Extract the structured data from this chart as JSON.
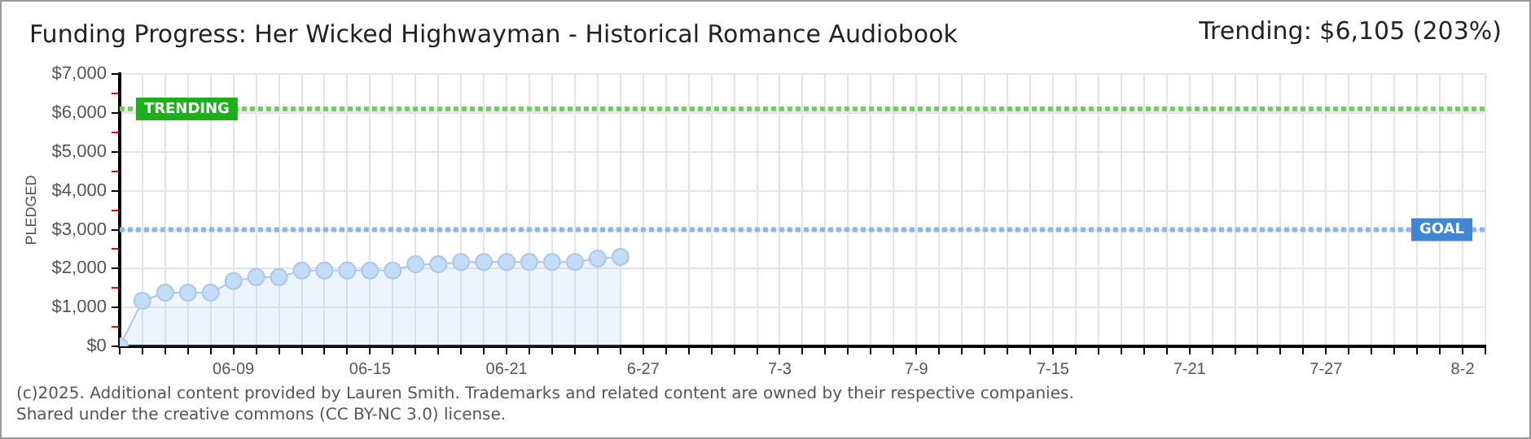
{
  "chart_data": {
    "type": "area",
    "title": "Funding Progress: Her Wicked Highwayman - Historical Romance Audiobook",
    "subtitle": "Trending:  $6,105 (203%)",
    "ylabel": "PLEDGED",
    "x": [
      "--06-04",
      "--06-05",
      "--06-06",
      "--06-07",
      "--06-08",
      "--06-09",
      "--06-10",
      "--06-11",
      "--06-12",
      "--06-13",
      "--06-14",
      "--06-15",
      "--06-16",
      "--06-17",
      "--06-18",
      "--06-19",
      "--06-20",
      "--06-21",
      "--06-22",
      "--06-23",
      "--06-24",
      "--06-25",
      "--06-26"
    ],
    "series": [
      {
        "color": "#a9c8ee",
        "values": [
          0,
          1170,
          1380,
          1380,
          1380,
          1680,
          1780,
          1780,
          1950,
          1950,
          1950,
          1950,
          1950,
          2110,
          2110,
          2170,
          2170,
          2170,
          2170,
          2170,
          2170,
          2260,
          2300
        ]
      }
    ],
    "marker": "circle",
    "grid": true,
    "legend": false,
    "xlim": [
      "--06-04",
      "--08-03"
    ],
    "xticks": [
      {
        "value": "--06-04",
        "label": null
      },
      {
        "value": "--06-05",
        "label": null
      },
      {
        "value": "--06-06",
        "label": null
      },
      {
        "value": "--06-07",
        "label": null
      },
      {
        "value": "--06-08",
        "label": null
      },
      {
        "value": "--06-09",
        "label": "06-09"
      },
      {
        "value": "--06-10",
        "label": null
      },
      {
        "value": "--06-11",
        "label": null
      },
      {
        "value": "--06-12",
        "label": null
      },
      {
        "value": "--06-13",
        "label": null
      },
      {
        "value": "--06-14",
        "label": null
      },
      {
        "value": "--06-15",
        "label": "06-15"
      },
      {
        "value": "--06-16",
        "label": null
      },
      {
        "value": "--06-17",
        "label": null
      },
      {
        "value": "--06-18",
        "label": null
      },
      {
        "value": "--06-19",
        "label": null
      },
      {
        "value": "--06-20",
        "label": null
      },
      {
        "value": "--06-21",
        "label": "06-21"
      },
      {
        "value": "--06-22",
        "label": null
      },
      {
        "value": "--06-23",
        "label": null
      },
      {
        "value": "--06-24",
        "label": null
      },
      {
        "value": "--06-25",
        "label": null
      },
      {
        "value": "--06-26",
        "label": null
      },
      {
        "value": "--06-27",
        "label": "6-27"
      },
      {
        "value": "--06-28",
        "label": null
      },
      {
        "value": "--06-29",
        "label": null
      },
      {
        "value": "--06-30",
        "label": null
      },
      {
        "value": "--07-01",
        "label": null
      },
      {
        "value": "--07-02",
        "label": null
      },
      {
        "value": "--07-03",
        "label": "7-3"
      },
      {
        "value": "--07-04",
        "label": null
      },
      {
        "value": "--07-05",
        "label": null
      },
      {
        "value": "--07-06",
        "label": null
      },
      {
        "value": "--07-07",
        "label": null
      },
      {
        "value": "--07-08",
        "label": null
      },
      {
        "value": "--07-09",
        "label": "7-9"
      },
      {
        "value": "--07-10",
        "label": null
      },
      {
        "value": "--07-11",
        "label": null
      },
      {
        "value": "--07-12",
        "label": null
      },
      {
        "value": "--07-13",
        "label": null
      },
      {
        "value": "--07-14",
        "label": null
      },
      {
        "value": "--07-15",
        "label": "7-15"
      },
      {
        "value": "--07-16",
        "label": null
      },
      {
        "value": "--07-17",
        "label": null
      },
      {
        "value": "--07-18",
        "label": null
      },
      {
        "value": "--07-19",
        "label": null
      },
      {
        "value": "--07-20",
        "label": null
      },
      {
        "value": "--07-21",
        "label": "7-21"
      },
      {
        "value": "--07-22",
        "label": null
      },
      {
        "value": "--07-23",
        "label": null
      },
      {
        "value": "--07-24",
        "label": null
      },
      {
        "value": "--07-25",
        "label": null
      },
      {
        "value": "--07-26",
        "label": null
      },
      {
        "value": "--07-27",
        "label": "7-27"
      },
      {
        "value": "--07-28",
        "label": null
      },
      {
        "value": "--07-29",
        "label": null
      },
      {
        "value": "--07-30",
        "label": null
      },
      {
        "value": "--07-31",
        "label": null
      },
      {
        "value": "--08-01",
        "label": null
      },
      {
        "value": "--08-02",
        "label": "8-2"
      },
      {
        "value": "--08-03",
        "label": null
      }
    ],
    "ylim": [
      0,
      7000
    ],
    "yticks": [
      {
        "value": 0,
        "label": "$0"
      },
      {
        "value": 500,
        "label": null
      },
      {
        "value": 1000,
        "label": "$1,000"
      },
      {
        "value": 1500,
        "label": null
      },
      {
        "value": 2000,
        "label": "$2,000"
      },
      {
        "value": 2500,
        "label": null
      },
      {
        "value": 3000,
        "label": "$3,000"
      },
      {
        "value": 3500,
        "label": null
      },
      {
        "value": 4000,
        "label": "$4,000"
      },
      {
        "value": 4500,
        "label": null
      },
      {
        "value": 5000,
        "label": "$5,000"
      },
      {
        "value": 5500,
        "label": null
      },
      {
        "value": 6000,
        "label": "$6,000"
      },
      {
        "value": 6500,
        "label": null
      },
      {
        "value": 7000,
        "label": "$7,000"
      }
    ],
    "ref_lines": [
      {
        "axis": "y",
        "value": 6105,
        "label": "TRENDING",
        "color": "#6ccf5e",
        "line_style": "dotted"
      },
      {
        "axis": "y",
        "value": 3000,
        "label": "GOAL",
        "color": "#8fb5e6",
        "line_style": "dotted"
      }
    ],
    "annotations": [
      "(c)2025. Additional content provided by Lauren Smith. Trademarks and related content are owned by their respective companies.",
      "Shared under the creative commons (CC BY-NC 3.0) license."
    ]
  }
}
